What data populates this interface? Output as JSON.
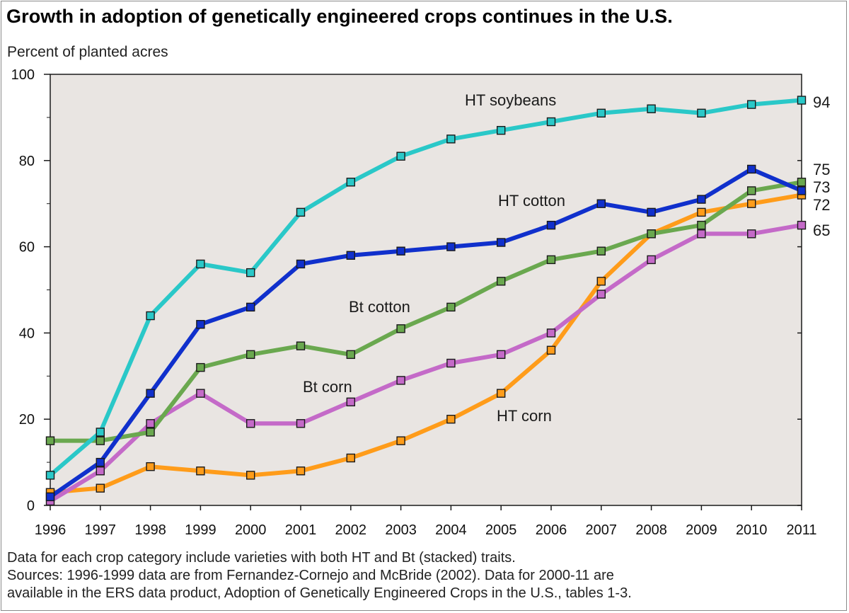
{
  "chart_data": {
    "type": "line",
    "title": "Growth in adoption of genetically engineered crops continues in the U.S.",
    "ylabel": "Percent of planted acres",
    "xlabel": "",
    "ylim": [
      0,
      100
    ],
    "yticks": [
      0,
      20,
      40,
      60,
      80,
      100
    ],
    "x": [
      "1996",
      "1997",
      "1998",
      "1999",
      "2000",
      "2001",
      "2002",
      "2003",
      "2004",
      "2005",
      "2006",
      "2007",
      "2008",
      "2009",
      "2010",
      "2011"
    ],
    "series": [
      {
        "name": "HT soybeans",
        "color": "#2ac8c8",
        "end_label": "94",
        "values": [
          7,
          17,
          44,
          56,
          54,
          68,
          75,
          81,
          85,
          87,
          89,
          91,
          92,
          91,
          93,
          94
        ]
      },
      {
        "name": "HT cotton",
        "color": "#1030cc",
        "end_label": "73",
        "values": [
          2,
          10,
          26,
          42,
          46,
          56,
          58,
          59,
          60,
          61,
          65,
          70,
          68,
          71,
          78,
          73
        ]
      },
      {
        "name": "Bt cotton",
        "color": "#6aa84f",
        "end_label": "75",
        "values": [
          15,
          15,
          17,
          32,
          35,
          37,
          35,
          41,
          46,
          52,
          57,
          59,
          63,
          65,
          73,
          75
        ]
      },
      {
        "name": "Bt corn",
        "color": "#c46ac8",
        "end_label": "65",
        "values": [
          1,
          8,
          19,
          26,
          19,
          19,
          24,
          29,
          33,
          35,
          40,
          49,
          57,
          63,
          63,
          65
        ]
      },
      {
        "name": "HT corn",
        "color": "#ff9c1a",
        "end_label": "72",
        "values": [
          3,
          4,
          9,
          8,
          7,
          8,
          11,
          15,
          20,
          26,
          36,
          52,
          63,
          68,
          70,
          72
        ]
      }
    ],
    "footnotes": [
      "Data for each crop category include varieties with both HT and Bt (stacked) traits.",
      "Sources: 1996-1999 data are from Fernandez-Cornejo and McBride (2002). Data for 2000-11 are",
      "available in the ERS data product, Adoption of Genetically Engineered Crops in the U.S., tables 1-3."
    ]
  }
}
